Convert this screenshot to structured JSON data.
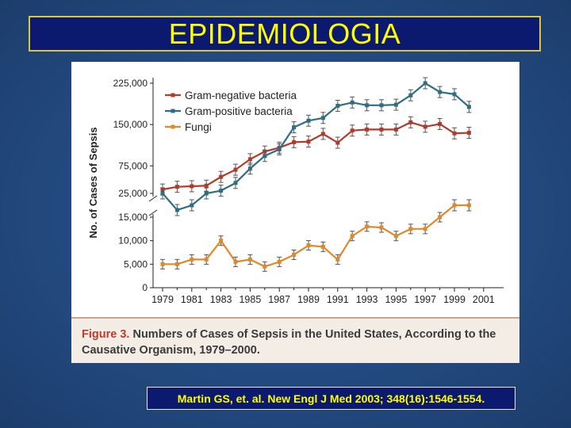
{
  "slide": {
    "title": "EPIDEMIOLOGIA",
    "citation": "Martin GS, et. al. New Engl J Med  2003; 348(16):1546-1554."
  },
  "caption": {
    "label": "Figure 3.",
    "text": "Numbers of Cases of Sepsis in the United States, According to the Causative Organism, 1979–2000."
  },
  "chart_data": {
    "type": "line",
    "title": "",
    "ylabel": "No. of Cases of Sepsis",
    "xlabel": "",
    "x": [
      1979,
      1980,
      1981,
      1982,
      1983,
      1984,
      1985,
      1986,
      1987,
      1988,
      1989,
      1990,
      1991,
      1992,
      1993,
      1994,
      1995,
      1996,
      1997,
      1998,
      1999,
      2000
    ],
    "x_ticks": [
      "1979",
      "1981",
      "1983",
      "1985",
      "1987",
      "1989",
      "1991",
      "1993",
      "1995",
      "1997",
      "1999",
      "2001"
    ],
    "y_ticks": [
      "0",
      "5,000",
      "10,000",
      "15,000",
      "25,000",
      "75,000",
      "150,000",
      "225,000"
    ],
    "y_axis_break": true,
    "legend_position": "top-left",
    "series": [
      {
        "name": "Gram-negative bacteria",
        "color": "#b23a2a",
        "values": [
          32000,
          37000,
          38000,
          39000,
          55000,
          68000,
          87000,
          101000,
          108000,
          118000,
          119000,
          133000,
          117000,
          139000,
          141000,
          141000,
          141000,
          154000,
          146000,
          151000,
          134000,
          135000
        ]
      },
      {
        "name": "Gram-positive bacteria",
        "color": "#2e6e85",
        "values": [
          25000,
          18000,
          20000,
          25000,
          30000,
          44000,
          70000,
          93000,
          105000,
          145000,
          157000,
          162000,
          184000,
          190000,
          185000,
          185000,
          186000,
          203000,
          225000,
          209000,
          205000,
          182000
        ]
      },
      {
        "name": "Fungi",
        "color": "#e0892b",
        "values": [
          5000,
          5000,
          6000,
          6000,
          10000,
          5500,
          6000,
          4500,
          5500,
          7000,
          9000,
          8700,
          6000,
          11000,
          13000,
          12800,
          11000,
          12500,
          12500,
          15000,
          20000,
          20000
        ]
      }
    ]
  }
}
